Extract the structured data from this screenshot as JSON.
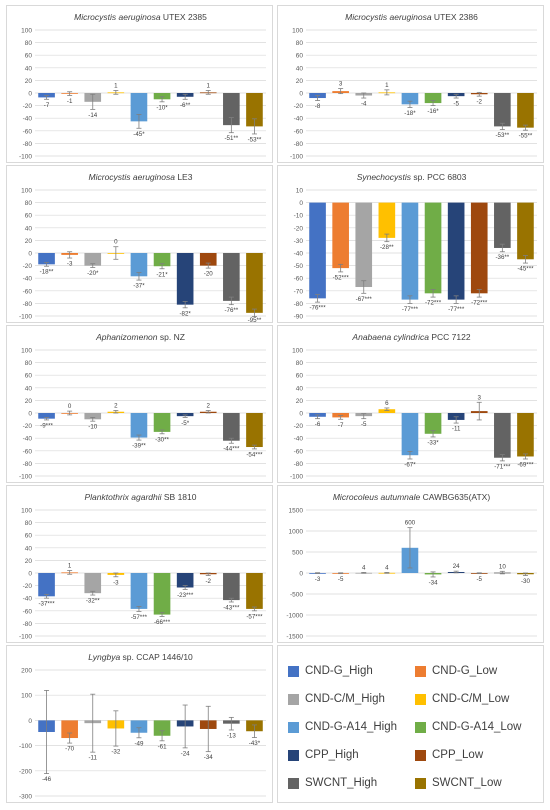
{
  "legend": [
    {
      "name": "CND-G_High",
      "color": "#4472c4"
    },
    {
      "name": "CND-G_Low",
      "color": "#ed7d31"
    },
    {
      "name": "CND-C/M_High",
      "color": "#a5a5a5"
    },
    {
      "name": "CND-C/M_Low",
      "color": "#ffc000"
    },
    {
      "name": "CND-G-A14_High",
      "color": "#5b9bd5"
    },
    {
      "name": "CND-G-A14_Low",
      "color": "#70ad47"
    },
    {
      "name": "CPP_High",
      "color": "#264478"
    },
    {
      "name": "CPP_Low",
      "color": "#9e480e"
    },
    {
      "name": "SWCNT_High",
      "color": "#636363"
    },
    {
      "name": "SWCNT_Low",
      "color": "#997300"
    }
  ],
  "chart_data": [
    {
      "type": "bar",
      "title_italic": "Microcystis aeruginosa",
      "title_rest": " UTEX 2385",
      "ylim": [
        -100,
        100
      ],
      "yticks": [
        "100",
        "80",
        "60",
        "40",
        "20",
        "0",
        "-20",
        "-40",
        "-60",
        "-80",
        "-100"
      ],
      "grid": true,
      "values": [
        -7,
        -1,
        -14,
        1,
        -45,
        -10,
        -6,
        1,
        -51,
        -53
      ],
      "errors": [
        3,
        3,
        12,
        3,
        11,
        4,
        4,
        3,
        12,
        12
      ],
      "labels": [
        "-7",
        "-1",
        "-14",
        "1",
        "-45*",
        "-10*",
        "-6**",
        "1",
        "-51**",
        "-53**"
      ]
    },
    {
      "type": "bar",
      "title_italic": "Microcystis aeruginosa",
      "title_rest": " UTEX 2386",
      "ylim": [
        -100,
        100
      ],
      "yticks": [
        "100",
        "80",
        "60",
        "40",
        "20",
        "0",
        "-20",
        "-40",
        "-60",
        "-80",
        "-100"
      ],
      "grid": true,
      "values": [
        -8,
        3,
        -4,
        1,
        -18,
        -16,
        -5,
        -2,
        -53,
        -55
      ],
      "errors": [
        4,
        4,
        4,
        4,
        5,
        4,
        3,
        3,
        5,
        4
      ],
      "labels": [
        "-8",
        "3",
        "-4",
        "1",
        "-18*",
        "-16*",
        "-5",
        "-2",
        "-53**",
        "-55**"
      ]
    },
    {
      "type": "bar",
      "title_italic": "Microcystis aeruginosa",
      "title_rest": " LE3",
      "ylim": [
        -100,
        100
      ],
      "yticks": [
        "100",
        "80",
        "60",
        "40",
        "20",
        "0",
        "-20",
        "-40",
        "-60",
        "-80",
        "-100"
      ],
      "grid": true,
      "values": [
        -18,
        -3,
        -20,
        0,
        -37,
        -21,
        -82,
        -20,
        -76,
        -95
      ],
      "errors": [
        3,
        5,
        3,
        10,
        6,
        4,
        5,
        4,
        6,
        6
      ],
      "labels": [
        "-18**",
        "-3",
        "-20*",
        "0",
        "-37*",
        "-21*",
        "-82*",
        "-20",
        "-76**",
        "-95**"
      ]
    },
    {
      "type": "bar",
      "title_italic": "Synechocystis",
      "title_rest": " sp. PCC 6803",
      "ylim": [
        -90,
        10
      ],
      "yticks": [
        "10",
        "0",
        "-10",
        "-20",
        "-30",
        "-40",
        "-50",
        "-60",
        "-70",
        "-80",
        "-90"
      ],
      "grid": true,
      "values": [
        -76,
        -52,
        -67,
        -28,
        -77,
        -72,
        -77,
        -72,
        -36,
        -45
      ],
      "errors": [
        3,
        3,
        5,
        3,
        3,
        3,
        3,
        3,
        3,
        3
      ],
      "labels": [
        "-76***",
        "-52***",
        "-67***",
        "-28**",
        "-77***",
        "-72***",
        "-77***",
        "-72***",
        "-36**",
        "-45***"
      ]
    },
    {
      "type": "bar",
      "title_italic": "Aphanizomenon",
      "title_rest": " sp. NZ",
      "ylim": [
        -100,
        100
      ],
      "yticks": [
        "100",
        "80",
        "60",
        "40",
        "20",
        "0",
        "-20",
        "-40",
        "-60",
        "-80",
        "-100"
      ],
      "grid": true,
      "values": [
        -9,
        0,
        -10,
        2,
        -39,
        -30,
        -5,
        2,
        -44,
        -54
      ],
      "errors": [
        2,
        3,
        3,
        2,
        4,
        3,
        2,
        2,
        4,
        3
      ],
      "labels": [
        "-9***",
        "0",
        "-10",
        "2",
        "-39**",
        "-30**",
        "-5*",
        "2",
        "-44***",
        "-54***"
      ]
    },
    {
      "type": "bar",
      "title_italic": "Anabaena cylindrica",
      "title_rest": " PCC 7122",
      "ylim": [
        -100,
        100
      ],
      "yticks": [
        "100",
        "80",
        "60",
        "40",
        "20",
        "0",
        "-20",
        "-40",
        "-60",
        "-80",
        "-100"
      ],
      "grid": true,
      "values": [
        -6,
        -7,
        -5,
        6,
        -67,
        -33,
        -11,
        3,
        -71,
        -69
      ],
      "errors": [
        3,
        3,
        4,
        2,
        6,
        5,
        5,
        14,
        5,
        4
      ],
      "labels": [
        "-6",
        "-7",
        "-5",
        "6",
        "-67*",
        "-33*",
        "-11",
        "3",
        "-71***",
        "-69***"
      ]
    },
    {
      "type": "bar",
      "title_italic": "Planktothrix agardhii",
      "title_rest": " SB 1810",
      "ylim": [
        -100,
        100
      ],
      "yticks": [
        "100",
        "80",
        "60",
        "40",
        "20",
        "0",
        "-20",
        "-40",
        "-60",
        "-80",
        "-100"
      ],
      "grid": true,
      "values": [
        -37,
        1,
        -32,
        -3,
        -57,
        -66,
        -23,
        -2,
        -43,
        -57
      ],
      "errors": [
        3,
        3,
        3,
        3,
        4,
        3,
        3,
        2,
        3,
        3
      ],
      "labels": [
        "-37***",
        "1",
        "-32**",
        "-3",
        "-57***",
        "-66***",
        "-23***",
        "-2",
        "-43***",
        "-57***"
      ]
    },
    {
      "type": "bar",
      "title_italic": "Microcoleus autumnale",
      "title_rest": " CAWBG635(ATX)",
      "ylim": [
        -1500,
        1500
      ],
      "yticks": [
        "1500",
        "1000",
        "500",
        "0",
        "-500",
        "-1000",
        "-1500"
      ],
      "grid": true,
      "values": [
        -3,
        -5,
        4,
        4,
        600,
        -34,
        24,
        -5,
        10,
        -30
      ],
      "errors": [
        10,
        10,
        10,
        10,
        480,
        60,
        20,
        10,
        30,
        30
      ],
      "labels": [
        "-3",
        "-5",
        "4",
        "4",
        "600",
        "-34",
        "24",
        "-5",
        "10",
        "-30"
      ]
    },
    {
      "type": "bar",
      "title_italic": "Lyngbya",
      "title_rest": " sp. CCAP 1446/10",
      "ylim": [
        -300,
        200
      ],
      "yticks": [
        "200",
        "100",
        "0",
        "-100",
        "-200",
        "-300"
      ],
      "grid": true,
      "values": [
        -46,
        -70,
        -11,
        -32,
        -49,
        -61,
        -24,
        -34,
        -13,
        -43
      ],
      "errors": [
        165,
        20,
        115,
        70,
        20,
        20,
        85,
        90,
        25,
        25
      ],
      "labels": [
        "-46",
        "-70",
        "-11",
        "-32",
        "-49",
        "-61",
        "-24",
        "-34",
        "-13",
        "-43*"
      ]
    }
  ]
}
